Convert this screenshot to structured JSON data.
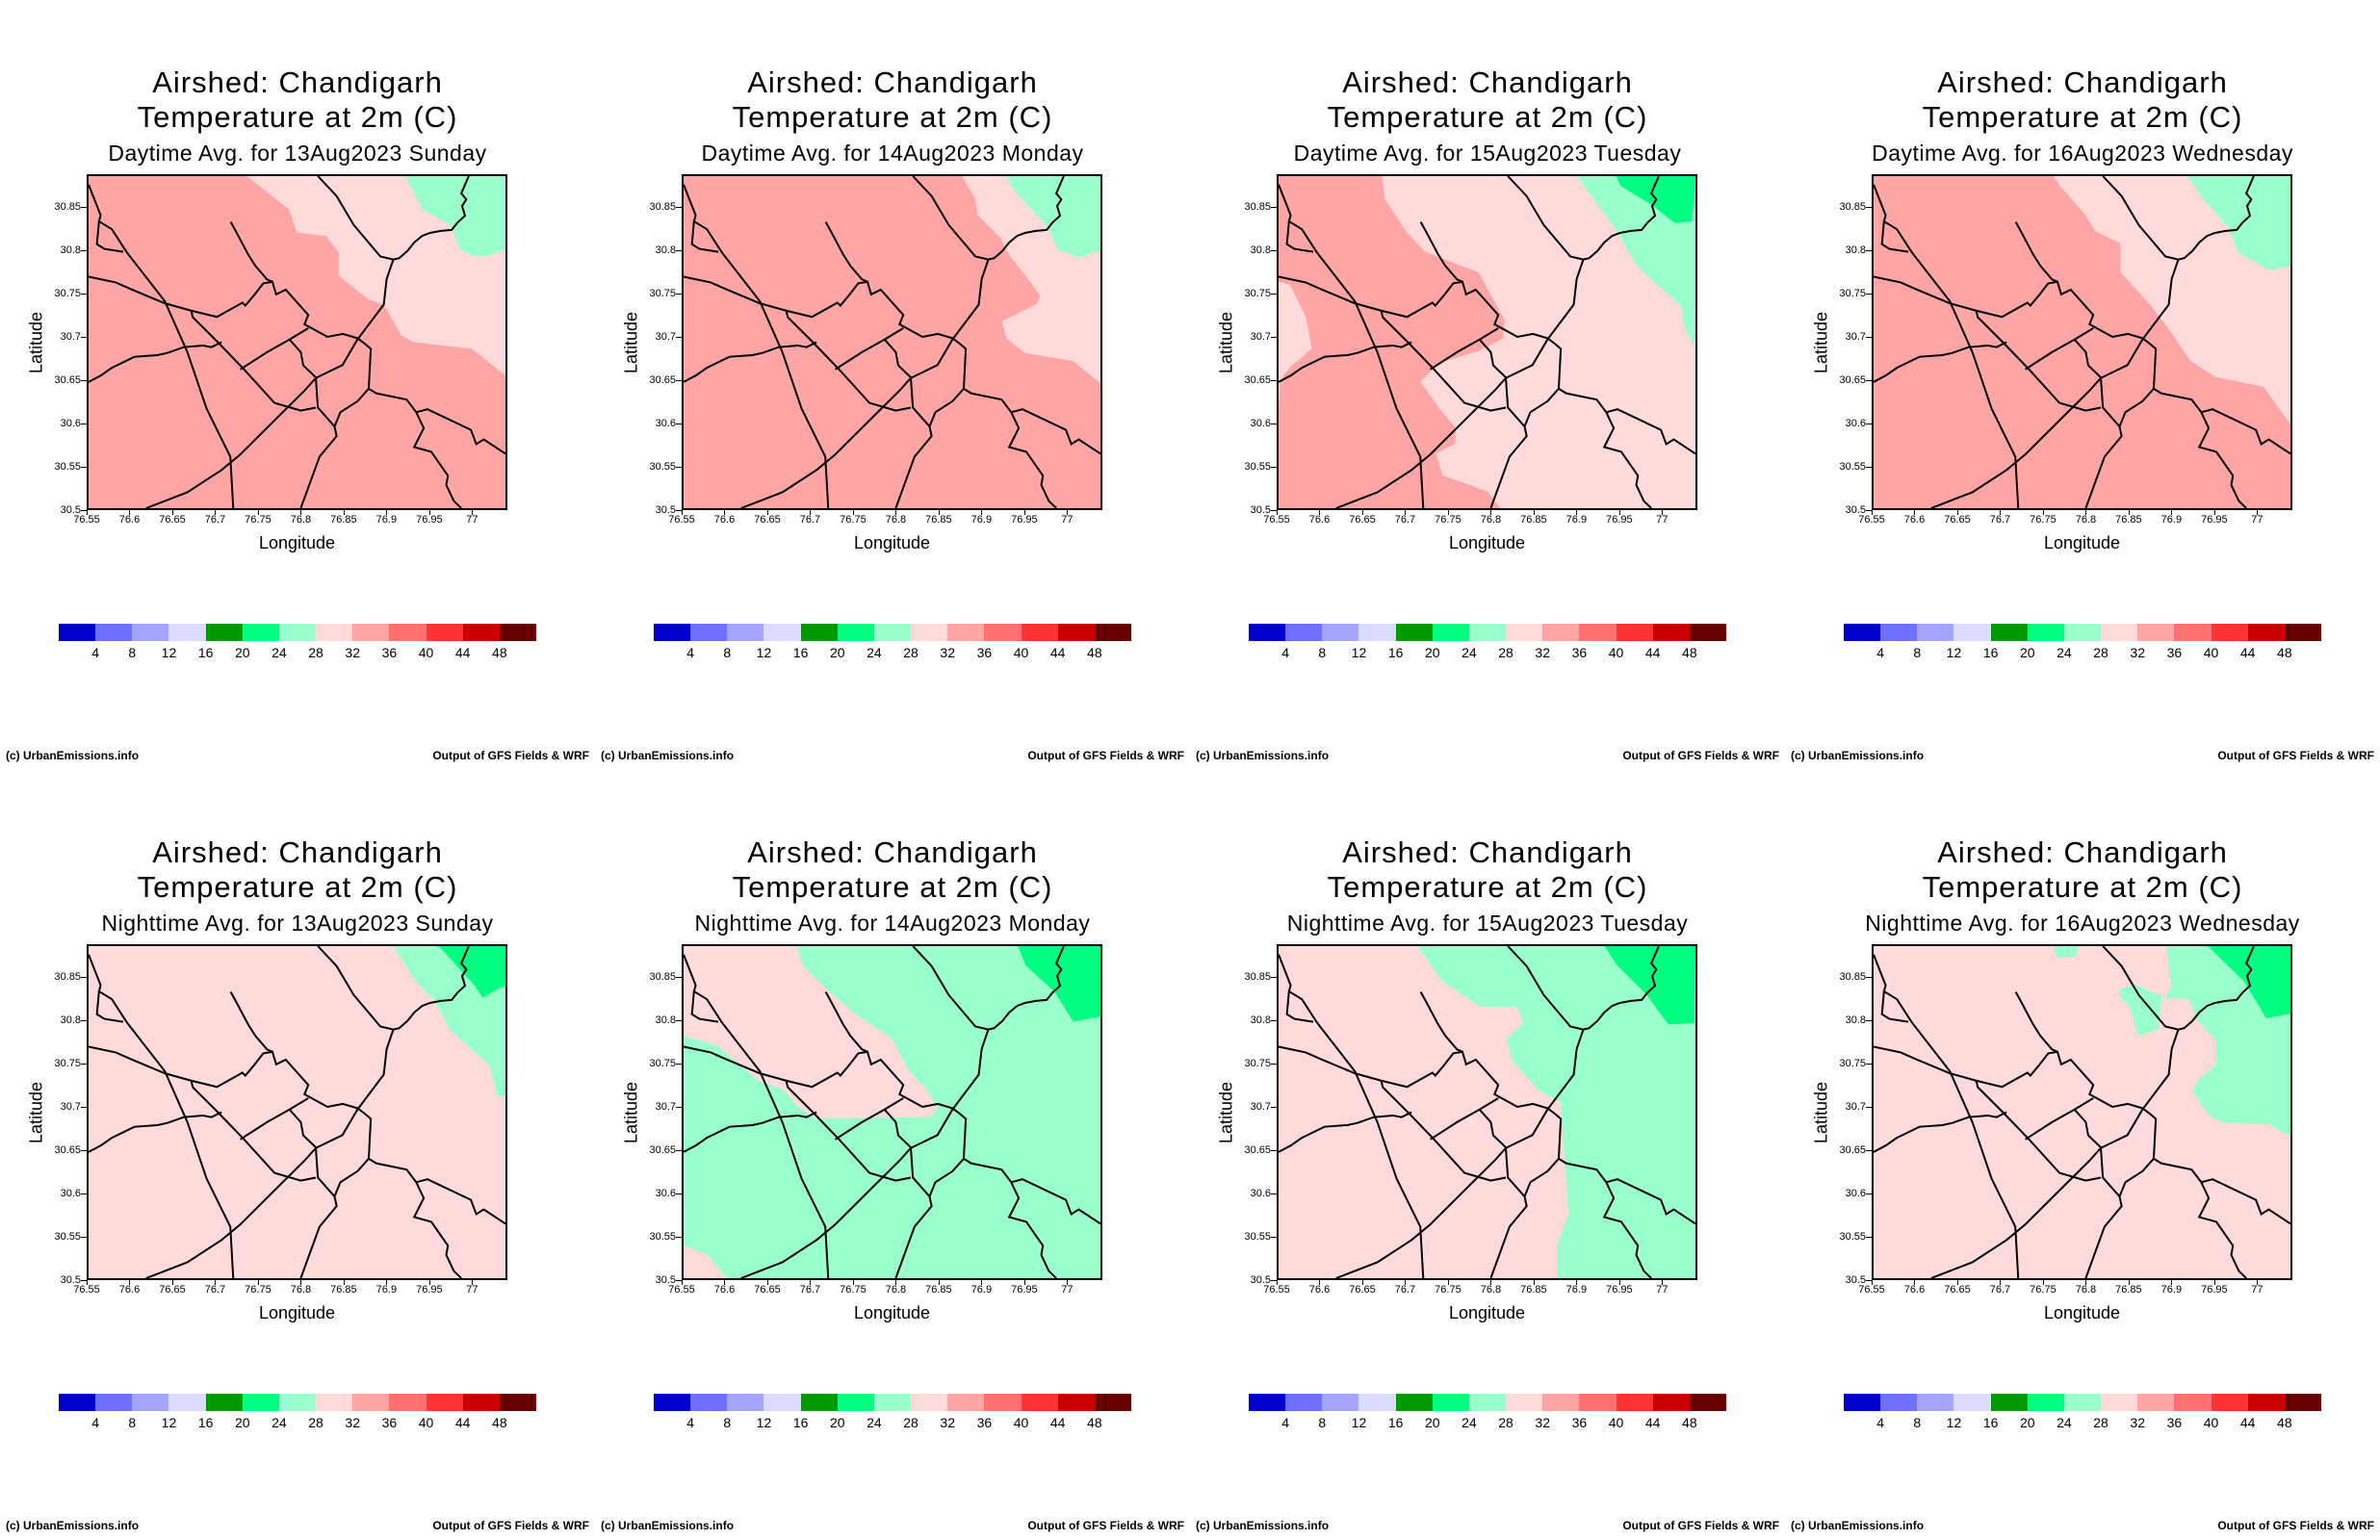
{
  "panels": [
    {
      "airshed": "Airshed: Chandigarh",
      "variable": "Temperature at 2m (C)",
      "subtitle": "Daytime Avg. for 13Aug2023 Sunday"
    },
    {
      "airshed": "Airshed: Chandigarh",
      "variable": "Temperature at 2m (C)",
      "subtitle": "Daytime Avg. for 14Aug2023 Monday"
    },
    {
      "airshed": "Airshed: Chandigarh",
      "variable": "Temperature at 2m (C)",
      "subtitle": "Daytime Avg. for 15Aug2023 Tuesday"
    },
    {
      "airshed": "Airshed: Chandigarh",
      "variable": "Temperature at 2m (C)",
      "subtitle": "Daytime Avg. for 16Aug2023 Wednesday"
    },
    {
      "airshed": "Airshed: Chandigarh",
      "variable": "Temperature at 2m (C)",
      "subtitle": "Nighttime Avg. for 13Aug2023 Sunday"
    },
    {
      "airshed": "Airshed: Chandigarh",
      "variable": "Temperature at 2m (C)",
      "subtitle": "Nighttime Avg. for 14Aug2023 Monday"
    },
    {
      "airshed": "Airshed: Chandigarh",
      "variable": "Temperature at 2m (C)",
      "subtitle": "Nighttime Avg. for 15Aug2023 Tuesday"
    },
    {
      "airshed": "Airshed: Chandigarh",
      "variable": "Temperature at 2m (C)",
      "subtitle": "Nighttime Avg. for 16Aug2023 Wednesday"
    }
  ],
  "axes": {
    "xlabel": "Longitude",
    "ylabel": "Latitude",
    "lon_ticks": [
      "76.55",
      "76.6",
      "76.65",
      "76.7",
      "76.75",
      "76.8",
      "76.85",
      "76.9",
      "76.95",
      "77"
    ],
    "lat_ticks": [
      "30.5",
      "30.55",
      "30.6",
      "30.65",
      "30.7",
      "30.75",
      "30.8",
      "30.85"
    ]
  },
  "colorbar": {
    "colors": [
      "#0000cc",
      "#7070ff",
      "#a5a5ff",
      "#dcdcff",
      "#009900",
      "#00ff80",
      "#99ffcc",
      "#ffdada",
      "#ffa5a5",
      "#ff7070",
      "#ff3333",
      "#cc0000",
      "#660000"
    ],
    "labels": [
      "4",
      "8",
      "12",
      "16",
      "20",
      "24",
      "28",
      "32",
      "36",
      "40",
      "44",
      "48"
    ]
  },
  "footer": {
    "left": "(c) UrbanEmissions.info",
    "right": "Output of GFS Fields & WRF"
  }
}
